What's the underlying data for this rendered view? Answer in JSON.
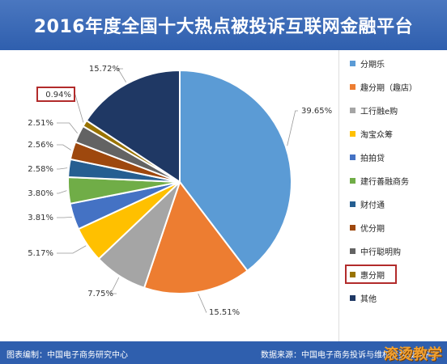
{
  "title": "2016年度全国十大热点被投诉互联网金融平台",
  "footer": {
    "left": "图表编制：中国电子商务研究中心",
    "right": "数据来源：中国电子商务投诉与维权公共服务平台"
  },
  "watermark": "滚烫教学",
  "colors": {
    "title_bg": "#2f5fae",
    "highlight_box": "#b22b2b"
  },
  "chart_data": {
    "type": "pie",
    "title": "2016年度全国十大热点被投诉互联网金融平台",
    "series": [
      {
        "name": "分期乐",
        "value": 39.65,
        "label": "39.65%",
        "color": "#5b9bd5"
      },
      {
        "name": "趣分期（趣店）",
        "value": 15.51,
        "label": "15.51%",
        "color": "#ed7d31"
      },
      {
        "name": "工行融e购",
        "value": 7.75,
        "label": "7.75%",
        "color": "#a5a5a5"
      },
      {
        "name": "淘宝众筹",
        "value": 5.17,
        "label": "5.17%",
        "color": "#ffc000"
      },
      {
        "name": "拍拍贷",
        "value": 3.81,
        "label": "3.81%",
        "color": "#4472c4"
      },
      {
        "name": "建行善融商务",
        "value": 3.8,
        "label": "3.80%",
        "color": "#70ad47"
      },
      {
        "name": "财付通",
        "value": 2.58,
        "label": "2.58%",
        "color": "#255e91"
      },
      {
        "name": "优分期",
        "value": 2.56,
        "label": "2.56%",
        "color": "#9e480e"
      },
      {
        "name": "中行聪明购",
        "value": 2.51,
        "label": "2.51%",
        "color": "#636363"
      },
      {
        "name": "惠分期",
        "value": 0.94,
        "label": "0.94%",
        "color": "#997300"
      },
      {
        "name": "其他",
        "value": 15.72,
        "label": "15.72%",
        "color": "#1f3864"
      }
    ],
    "highlighted": [
      "0.94%",
      "惠分期"
    ],
    "legend_position": "right"
  }
}
